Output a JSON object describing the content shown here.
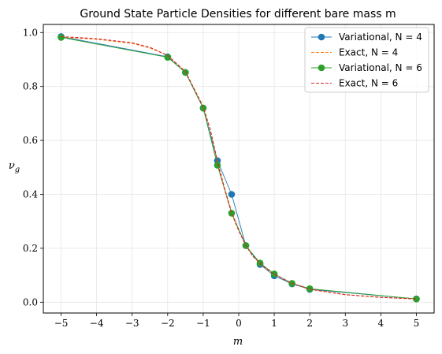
{
  "chart_data": {
    "type": "line",
    "title": "Ground State Particle Densities for different bare mass m",
    "xlabel": "m",
    "ylabel": "ν_g",
    "xlim": [
      -5.5,
      5.5
    ],
    "ylim": [
      -0.04,
      1.03
    ],
    "xticks": [
      -5,
      -4,
      -3,
      -2,
      -1,
      0,
      1,
      2,
      3,
      4,
      5
    ],
    "xtick_labels": [
      "−5",
      "−4",
      "−3",
      "−2",
      "−1",
      "0",
      "1",
      "2",
      "3",
      "4",
      "5"
    ],
    "yticks": [
      0.0,
      0.2,
      0.4,
      0.6,
      0.8,
      1.0
    ],
    "ytick_labels": [
      "0.0",
      "0.2",
      "0.4",
      "0.6",
      "0.8",
      "1.0"
    ],
    "grid": true,
    "legend_position": "top-right",
    "series": [
      {
        "name": "Variational, N = 4",
        "style": "solid-marker",
        "color": "#1f77b4",
        "x": [
          -5,
          -2,
          -1.5,
          -1,
          -0.6,
          -0.2,
          0.2,
          0.6,
          1,
          1.5,
          2,
          5
        ],
        "y": [
          0.985,
          0.91,
          0.852,
          0.72,
          0.525,
          0.4,
          0.21,
          0.14,
          0.098,
          0.068,
          0.048,
          0.012
        ]
      },
      {
        "name": "Exact, N = 4",
        "style": "dashed",
        "color": "#ff7f0e",
        "x": [
          -5,
          -4,
          -3,
          -2.5,
          -2,
          -1.5,
          -1,
          -0.8,
          -0.6,
          -0.4,
          -0.2,
          0,
          0.2,
          0.4,
          0.6,
          0.8,
          1,
          1.5,
          2,
          3,
          4,
          5
        ],
        "y": [
          0.983,
          0.975,
          0.96,
          0.943,
          0.915,
          0.855,
          0.725,
          0.64,
          0.525,
          0.425,
          0.335,
          0.27,
          0.212,
          0.17,
          0.145,
          0.122,
          0.104,
          0.07,
          0.048,
          0.028,
          0.018,
          0.012
        ]
      },
      {
        "name": "Variational, N = 6",
        "style": "solid-marker",
        "color": "#2ca02c",
        "x": [
          -5,
          -2,
          -1.5,
          -1,
          -0.6,
          -0.2,
          0.2,
          0.6,
          1,
          1.5,
          2,
          5
        ],
        "y": [
          0.982,
          0.908,
          0.852,
          0.72,
          0.508,
          0.33,
          0.21,
          0.145,
          0.105,
          0.07,
          0.05,
          0.012
        ]
      },
      {
        "name": "Exact, N = 6",
        "style": "dashed",
        "color": "#d62728",
        "x": [
          -5,
          -4,
          -3,
          -2.5,
          -2,
          -1.5,
          -1,
          -0.8,
          -0.6,
          -0.4,
          -0.2,
          0,
          0.2,
          0.4,
          0.6,
          0.8,
          1,
          1.5,
          2,
          3,
          4,
          5
        ],
        "y": [
          0.985,
          0.977,
          0.962,
          0.945,
          0.915,
          0.855,
          0.725,
          0.64,
          0.52,
          0.42,
          0.33,
          0.265,
          0.21,
          0.17,
          0.145,
          0.122,
          0.104,
          0.07,
          0.048,
          0.028,
          0.018,
          0.012
        ]
      }
    ]
  }
}
